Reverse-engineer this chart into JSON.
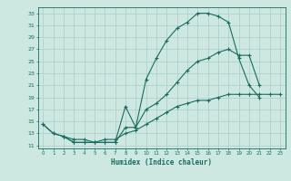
{
  "title": "",
  "xlabel": "Humidex (Indice chaleur)",
  "bg_color": "#cce8e0",
  "grid_color": "#aacccc",
  "line_color": "#1a6b60",
  "xlim": [
    -0.5,
    23.5
  ],
  "ylim": [
    10.5,
    34.0
  ],
  "xticks": [
    0,
    1,
    2,
    3,
    4,
    5,
    6,
    7,
    8,
    9,
    10,
    11,
    12,
    13,
    14,
    15,
    16,
    17,
    18,
    19,
    20,
    21,
    22,
    23
  ],
  "yticks": [
    11,
    13,
    15,
    17,
    19,
    21,
    23,
    25,
    27,
    29,
    31,
    33
  ],
  "series1_x": [
    0,
    1,
    2,
    3,
    4,
    5,
    6,
    7,
    8,
    9,
    10,
    11,
    12,
    13,
    14,
    15,
    16,
    17,
    18,
    19,
    20,
    21
  ],
  "series1_y": [
    14.5,
    13.0,
    12.5,
    11.5,
    11.5,
    11.5,
    11.5,
    11.5,
    17.5,
    14.0,
    22.0,
    25.5,
    28.5,
    30.5,
    31.5,
    33.0,
    33.0,
    32.5,
    31.5,
    25.5,
    21.0,
    19.0
  ],
  "series2_x": [
    0,
    1,
    2,
    3,
    4,
    5,
    6,
    7,
    8,
    9,
    10,
    11,
    12,
    13,
    14,
    15,
    16,
    17,
    18,
    19,
    20,
    21
  ],
  "series2_y": [
    14.5,
    13.0,
    12.5,
    11.5,
    11.5,
    11.5,
    11.5,
    11.5,
    14.0,
    14.0,
    17.0,
    18.0,
    19.5,
    21.5,
    23.5,
    25.0,
    25.5,
    26.5,
    27.0,
    26.0,
    26.0,
    21.0
  ],
  "series3_x": [
    2,
    3,
    4,
    5,
    6,
    7,
    8,
    9,
    10,
    11,
    12,
    13,
    14,
    15,
    16,
    17,
    18,
    19,
    20,
    21,
    22,
    23
  ],
  "series3_y": [
    12.5,
    12.0,
    12.0,
    11.5,
    12.0,
    12.0,
    13.0,
    13.5,
    14.5,
    15.5,
    16.5,
    17.5,
    18.0,
    18.5,
    18.5,
    19.0,
    19.5,
    19.5,
    19.5,
    19.5,
    19.5,
    19.5
  ]
}
